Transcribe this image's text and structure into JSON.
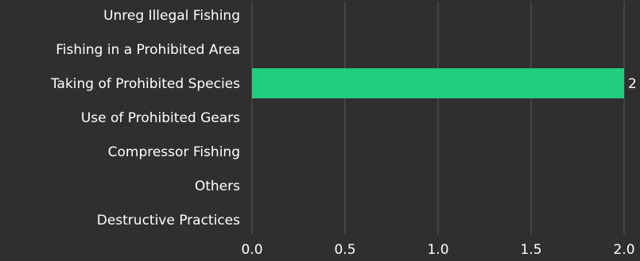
{
  "chart_data": {
    "type": "bar",
    "orientation": "horizontal",
    "categories": [
      "Unreg Illegal Fishing",
      "Fishing in a Prohibited Area",
      "Taking of Prohibited Species",
      "Use of Prohibited Gears",
      "Compressor Fishing",
      "Others",
      "Destructive Practices"
    ],
    "values": [
      0,
      0,
      2,
      0,
      0,
      0,
      0
    ],
    "data_labels": [
      "",
      "",
      "2",
      "",
      "",
      "",
      ""
    ],
    "xlim": [
      0,
      2
    ],
    "x_ticks": [
      "0.0",
      "0.5",
      "1.0",
      "1.5",
      "2.0"
    ],
    "x_tick_values": [
      0,
      0.5,
      1,
      1.5,
      2
    ],
    "grid": "vertical",
    "bar_color": "#22cc7f",
    "background": "#2f2f2f",
    "grid_color": "#5a5a5a",
    "text_color": "#ffffff"
  }
}
